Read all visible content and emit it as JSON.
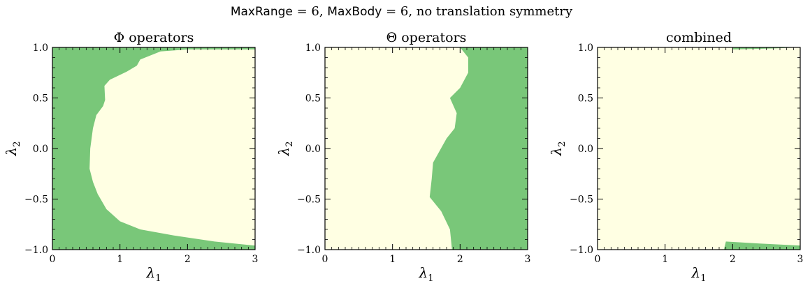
{
  "figure": {
    "suptitle_parts": [
      "MaxRange",
      " = 6,  ",
      "MaxBody",
      " = 6,  no translation symmetry"
    ],
    "colors": {
      "green": "#79c779",
      "cream": "#ffffe3",
      "axis": "#000000"
    }
  },
  "chart_data": [
    {
      "type": "heatmap",
      "title": "Φ operators",
      "xlabel": "λ",
      "xlabel_sub": "1",
      "ylabel": "λ",
      "ylabel_sub": "2",
      "xlim": [
        0,
        3
      ],
      "ylim": [
        -1,
        1
      ],
      "xticks": [
        "0",
        "1",
        "2",
        "3"
      ],
      "yticks": [
        "−1.0",
        "−0.5",
        "0.0",
        "0.5",
        "1.0"
      ],
      "background_region": "green",
      "region": "cream",
      "boundary": [
        [
          3.0,
          0.98
        ],
        [
          2.0,
          0.98
        ],
        [
          1.6,
          0.96
        ],
        [
          1.3,
          0.88
        ],
        [
          1.25,
          0.82
        ],
        [
          1.1,
          0.76
        ],
        [
          0.85,
          0.68
        ],
        [
          0.77,
          0.62
        ],
        [
          0.78,
          0.48
        ],
        [
          0.75,
          0.42
        ],
        [
          0.65,
          0.33
        ],
        [
          0.6,
          0.2
        ],
        [
          0.56,
          0.0
        ],
        [
          0.55,
          -0.2
        ],
        [
          0.6,
          -0.33
        ],
        [
          0.67,
          -0.45
        ],
        [
          0.8,
          -0.6
        ],
        [
          1.0,
          -0.72
        ],
        [
          1.3,
          -0.8
        ],
        [
          1.8,
          -0.86
        ],
        [
          2.4,
          -0.92
        ],
        [
          3.0,
          -0.96
        ]
      ]
    },
    {
      "type": "heatmap",
      "title": "Θ operators",
      "xlabel": "λ",
      "xlabel_sub": "1",
      "ylabel": "λ",
      "ylabel_sub": "2",
      "xlim": [
        0,
        3
      ],
      "ylim": [
        -1,
        1
      ],
      "xticks": [
        "0",
        "1",
        "2",
        "3"
      ],
      "yticks": [
        "−1.0",
        "−0.5",
        "0.0",
        "0.5",
        "1.0"
      ],
      "background_region": "cream",
      "region": "green",
      "boundary": [
        [
          2.0,
          1.0
        ],
        [
          2.12,
          0.9
        ],
        [
          2.12,
          0.75
        ],
        [
          2.0,
          0.6
        ],
        [
          1.85,
          0.5
        ],
        [
          1.95,
          0.35
        ],
        [
          1.92,
          0.2
        ],
        [
          1.8,
          0.1
        ],
        [
          1.6,
          -0.14
        ],
        [
          1.58,
          -0.3
        ],
        [
          1.55,
          -0.48
        ],
        [
          1.72,
          -0.62
        ],
        [
          1.85,
          -0.8
        ],
        [
          1.88,
          -1.0
        ]
      ]
    },
    {
      "type": "heatmap",
      "title": "combined",
      "xlabel": "λ",
      "xlabel_sub": "1",
      "ylabel": "λ",
      "ylabel_sub": "2",
      "xlim": [
        0,
        3
      ],
      "ylim": [
        -1,
        1
      ],
      "xticks": [
        "0",
        "1",
        "2",
        "3"
      ],
      "yticks": [
        "−1.0",
        "−0.5",
        "0.0",
        "0.5",
        "1.0"
      ],
      "background_region": "cream",
      "region": "green",
      "top_patch": [
        [
          2.0,
          1.0
        ],
        [
          2.0,
          0.98
        ],
        [
          2.6,
          0.99
        ],
        [
          3.0,
          1.0
        ]
      ],
      "bottom_patch": [
        [
          1.87,
          -1.0
        ],
        [
          1.9,
          -0.92
        ],
        [
          2.4,
          -0.94
        ],
        [
          3.0,
          -0.96
        ],
        [
          3.0,
          -1.0
        ]
      ]
    }
  ]
}
